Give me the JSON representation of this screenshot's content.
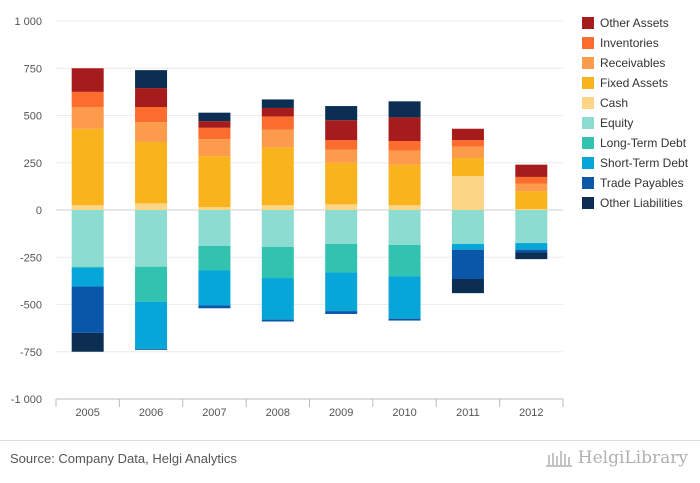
{
  "chart_data": {
    "type": "bar",
    "stacked": true,
    "categories": [
      "2005",
      "2006",
      "2007",
      "2008",
      "2009",
      "2010",
      "2011",
      "2012"
    ],
    "ylim": [
      -1000,
      1000
    ],
    "yticks": [
      1000,
      750,
      500,
      250,
      0,
      -250,
      -500,
      -750,
      -1000
    ],
    "ytick_labels": [
      "1 000",
      "750",
      "500",
      "250",
      "0",
      "-250",
      "-500",
      "-750",
      "-1 000"
    ],
    "grid": true,
    "legend_position": "right",
    "assets": [
      {
        "name": "Cash",
        "color": "#fcd587",
        "values": [
          25,
          35,
          15,
          25,
          30,
          25,
          180,
          5
        ]
      },
      {
        "name": "Fixed Assets",
        "color": "#f8b31d",
        "values": [
          405,
          325,
          270,
          305,
          220,
          215,
          95,
          95
        ]
      },
      {
        "name": "Receivables",
        "color": "#fb9b4b",
        "values": [
          115,
          105,
          90,
          95,
          70,
          75,
          60,
          40
        ]
      },
      {
        "name": "Inventories",
        "color": "#fb6c2f",
        "values": [
          80,
          80,
          60,
          70,
          50,
          50,
          35,
          35
        ]
      },
      {
        "name": "Other Assets",
        "color": "#a61c1c",
        "values": [
          125,
          100,
          35,
          45,
          105,
          125,
          60,
          65
        ]
      }
    ],
    "liabilities": [
      {
        "name": "Equity",
        "color": "#8ddcd2",
        "values": [
          -300,
          -300,
          -190,
          -195,
          -180,
          -185,
          -180,
          -175
        ]
      },
      {
        "name": "Long-Term Debt",
        "color": "#32c2b0",
        "values": [
          -5,
          -185,
          -130,
          -165,
          -150,
          -165,
          0,
          0
        ]
      },
      {
        "name": "Short-Term Debt",
        "color": "#06a7d8",
        "values": [
          -100,
          -250,
          -185,
          -220,
          -205,
          -225,
          -30,
          -35
        ]
      },
      {
        "name": "Trade Payables",
        "color": "#0a56a8",
        "values": [
          -245,
          -5,
          -15,
          -10,
          -15,
          -10,
          -155,
          -15
        ]
      },
      {
        "name": "Other Liabilities",
        "color": "#0b2e52",
        "values": [
          -100,
          0,
          0,
          0,
          0,
          0,
          -75,
          -35
        ]
      }
    ],
    "other_liabilities_top": [
      {
        "name": "Other Liabilities",
        "color": "#0b2e52",
        "values": [
          0,
          95,
          45,
          45,
          75,
          85,
          0,
          0
        ]
      }
    ]
  },
  "legend": [
    {
      "label": "Other Assets",
      "color": "#a61c1c"
    },
    {
      "label": "Inventories",
      "color": "#fb6c2f"
    },
    {
      "label": "Receivables",
      "color": "#fb9b4b"
    },
    {
      "label": "Fixed Assets",
      "color": "#f8b31d"
    },
    {
      "label": "Cash",
      "color": "#fcd587"
    },
    {
      "label": "Equity",
      "color": "#8ddcd2"
    },
    {
      "label": "Long-Term Debt",
      "color": "#32c2b0"
    },
    {
      "label": "Short-Term Debt",
      "color": "#06a7d8"
    },
    {
      "label": "Trade Payables",
      "color": "#0a56a8"
    },
    {
      "label": "Other Liabilities",
      "color": "#0b2e52"
    }
  ],
  "footer": {
    "source": "Source: Company Data, Helgi Analytics",
    "brand": "HelgiLibrary"
  }
}
